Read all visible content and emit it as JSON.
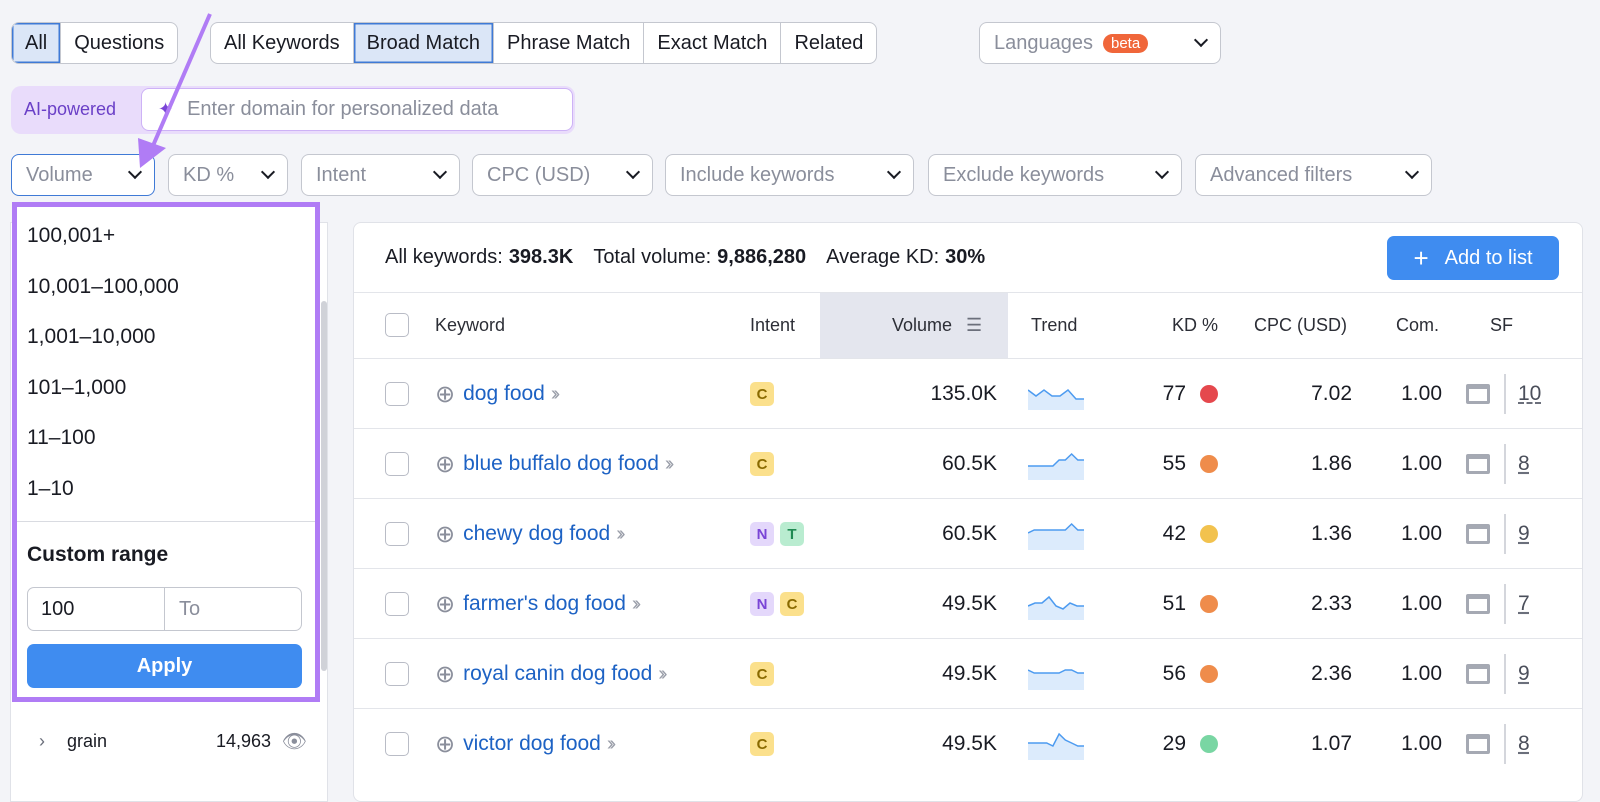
{
  "tabs1": [
    "All",
    "Questions"
  ],
  "tabs2": [
    "All Keywords",
    "Broad Match",
    "Phrase Match",
    "Exact Match",
    "Related"
  ],
  "languages": {
    "label": "Languages",
    "badge": "beta"
  },
  "ai": {
    "label": "AI-powered",
    "placeholder": "Enter domain for personalized data"
  },
  "filters": [
    "Volume",
    "KD %",
    "Intent",
    "CPC (USD)",
    "Include keywords",
    "Exclude keywords",
    "Advanced filters"
  ],
  "volume_menu": {
    "options": [
      "100,001+",
      "10,001–100,000",
      "1,001–10,000",
      "101–1,000",
      "11–100",
      "1–10"
    ],
    "custom_title": "Custom range",
    "from_value": "100",
    "to_placeholder": "To",
    "apply": "Apply"
  },
  "sidebar": {
    "item": "grain",
    "count": "14,963"
  },
  "summary": {
    "all_label": "All keywords:",
    "all_value": "398.3K",
    "vol_label": "Total volume:",
    "vol_value": "9,886,280",
    "kd_label": "Average KD:",
    "kd_value": "30%",
    "add_button": "Add to list"
  },
  "columns": [
    "Keyword",
    "Intent",
    "Volume",
    "Trend",
    "KD %",
    "CPC (USD)",
    "Com.",
    "SF"
  ],
  "rows": [
    {
      "keyword": "dog food",
      "intent": [
        "C"
      ],
      "volume": "135.0K",
      "trend": [
        6,
        4,
        6,
        4,
        4,
        6,
        3,
        3
      ],
      "kd": "77",
      "kd_color": "#e5484d",
      "cpc": "7.02",
      "com": "1.00",
      "sf": "10"
    },
    {
      "keyword": "blue buffalo dog food",
      "intent": [
        "C"
      ],
      "volume": "60.5K",
      "trend": [
        4,
        4,
        4,
        4,
        4,
        6,
        6,
        8,
        6,
        6
      ],
      "kd": "55",
      "kd_color": "#ef8c4b",
      "cpc": "1.86",
      "com": "1.00",
      "sf": "8"
    },
    {
      "keyword": "chewy dog food",
      "intent": [
        "N",
        "T"
      ],
      "volume": "60.5K",
      "trend": [
        5,
        6,
        6,
        6,
        6,
        6,
        6,
        8,
        6,
        6
      ],
      "kd": "42",
      "kd_color": "#f2c24e",
      "cpc": "1.36",
      "com": "1.00",
      "sf": "9"
    },
    {
      "keyword": "farmer's dog food",
      "intent": [
        "N",
        "C"
      ],
      "volume": "49.5K",
      "trend": [
        4,
        5,
        5,
        7,
        4,
        3,
        5,
        4,
        4
      ],
      "kd": "51",
      "kd_color": "#ef8c4b",
      "cpc": "2.33",
      "com": "1.00",
      "sf": "7"
    },
    {
      "keyword": "royal canin dog food",
      "intent": [
        "C"
      ],
      "volume": "49.5K",
      "trend": [
        6,
        5,
        5,
        5,
        5,
        5,
        6,
        6,
        5,
        5
      ],
      "kd": "56",
      "kd_color": "#ef8c4b",
      "cpc": "2.36",
      "com": "1.00",
      "sf": "9"
    },
    {
      "keyword": "victor dog food",
      "intent": [
        "C"
      ],
      "volume": "49.5K",
      "trend": [
        5,
        5,
        5,
        5,
        4,
        8,
        6,
        5,
        4,
        4
      ],
      "kd": "29",
      "kd_color": "#79d6a3",
      "cpc": "1.07",
      "com": "1.00",
      "sf": "8"
    }
  ],
  "intent_colors": {
    "C": [
      "#fbe08c",
      "#8a6a00"
    ],
    "N": [
      "#e4d8fb",
      "#7a45d6"
    ],
    "T": [
      "#b9ecd0",
      "#1f8a52"
    ]
  },
  "colors": {
    "accent": "#3f8cf0",
    "highlight": "#b07cf5"
  }
}
